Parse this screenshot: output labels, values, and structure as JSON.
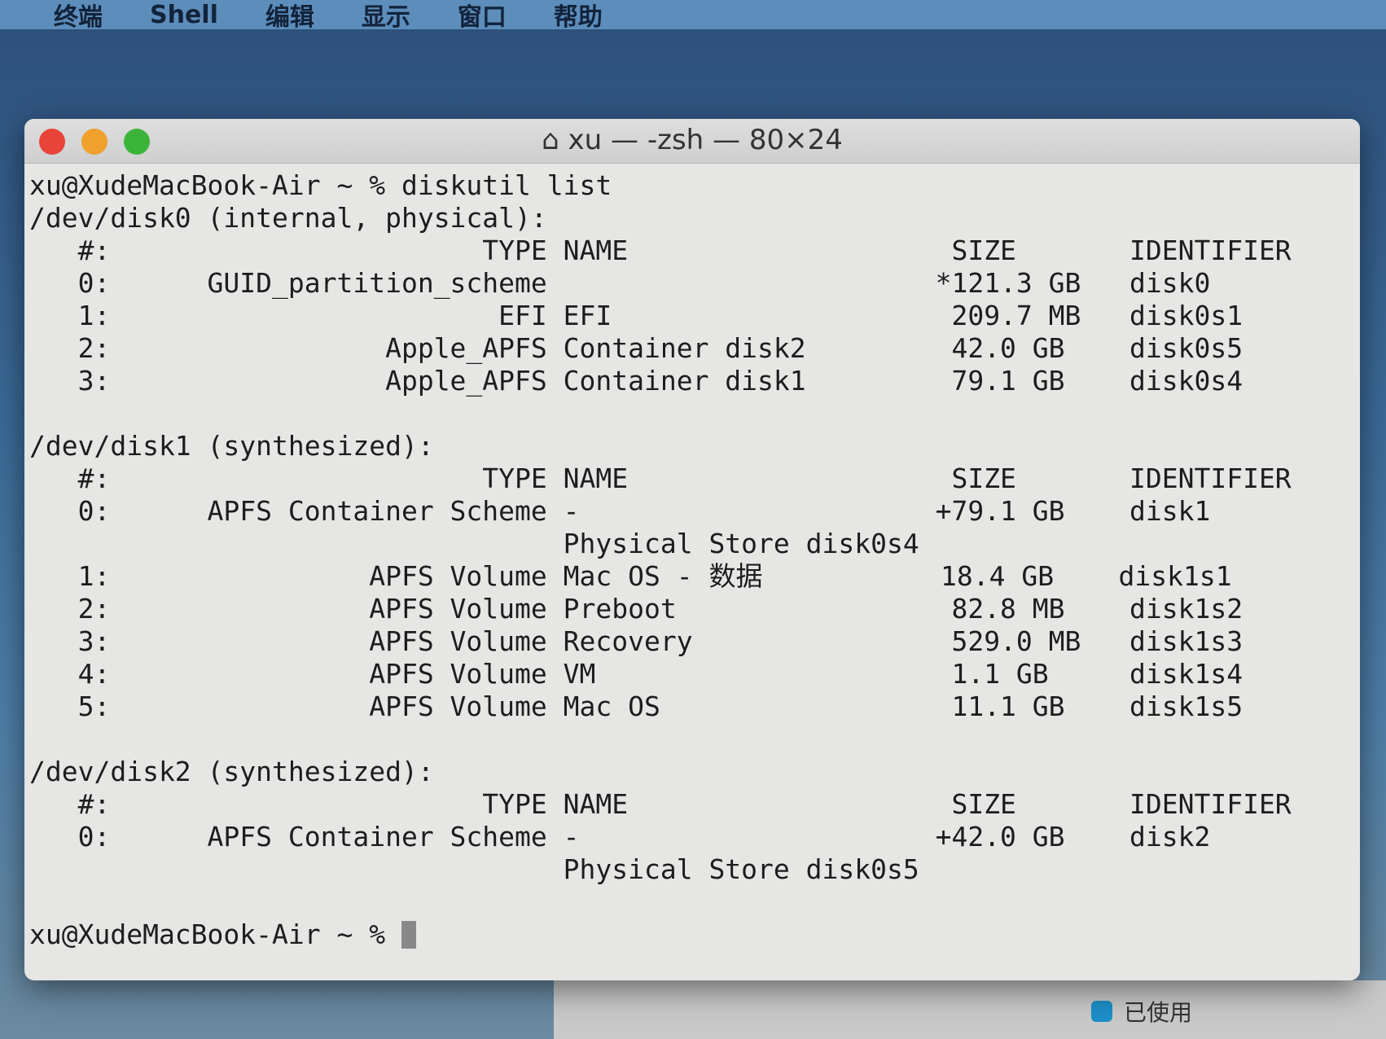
{
  "menubar": {
    "items": [
      "终端",
      "Shell",
      "编辑",
      "显示",
      "窗口",
      "帮助"
    ]
  },
  "window": {
    "title": "xu — -zsh — 80×24",
    "lines": [
      "xu@XudeMacBook-Air ~ % diskutil list",
      "/dev/disk0 (internal, physical):",
      "   #:                       TYPE NAME                    SIZE       IDENTIFIER",
      "   0:      GUID_partition_scheme                        *121.3 GB   disk0",
      "   1:                        EFI EFI                     209.7 MB   disk0s1",
      "   2:                 Apple_APFS Container disk2         42.0 GB    disk0s5",
      "   3:                 Apple_APFS Container disk1         79.1 GB    disk0s4",
      "",
      "/dev/disk1 (synthesized):",
      "   #:                       TYPE NAME                    SIZE       IDENTIFIER",
      "   0:      APFS Container Scheme -                      +79.1 GB    disk1",
      "                                 Physical Store disk0s4",
      "   1:                APFS Volume Mac OS - 数据           18.4 GB    disk1s1",
      "   2:                APFS Volume Preboot                 82.8 MB    disk1s2",
      "   3:                APFS Volume Recovery                529.0 MB   disk1s3",
      "   4:                APFS Volume VM                      1.1 GB     disk1s4",
      "   5:                APFS Volume Mac OS                  11.1 GB    disk1s5",
      "",
      "/dev/disk2 (synthesized):",
      "   #:                       TYPE NAME                    SIZE       IDENTIFIER",
      "   0:      APFS Container Scheme -                      +42.0 GB    disk2",
      "                                 Physical Store disk0s5",
      ""
    ],
    "prompt": "xu@XudeMacBook-Air ~ % "
  },
  "background": {
    "legend_label": "已使用",
    "legend_color": "#1e8fc8"
  }
}
